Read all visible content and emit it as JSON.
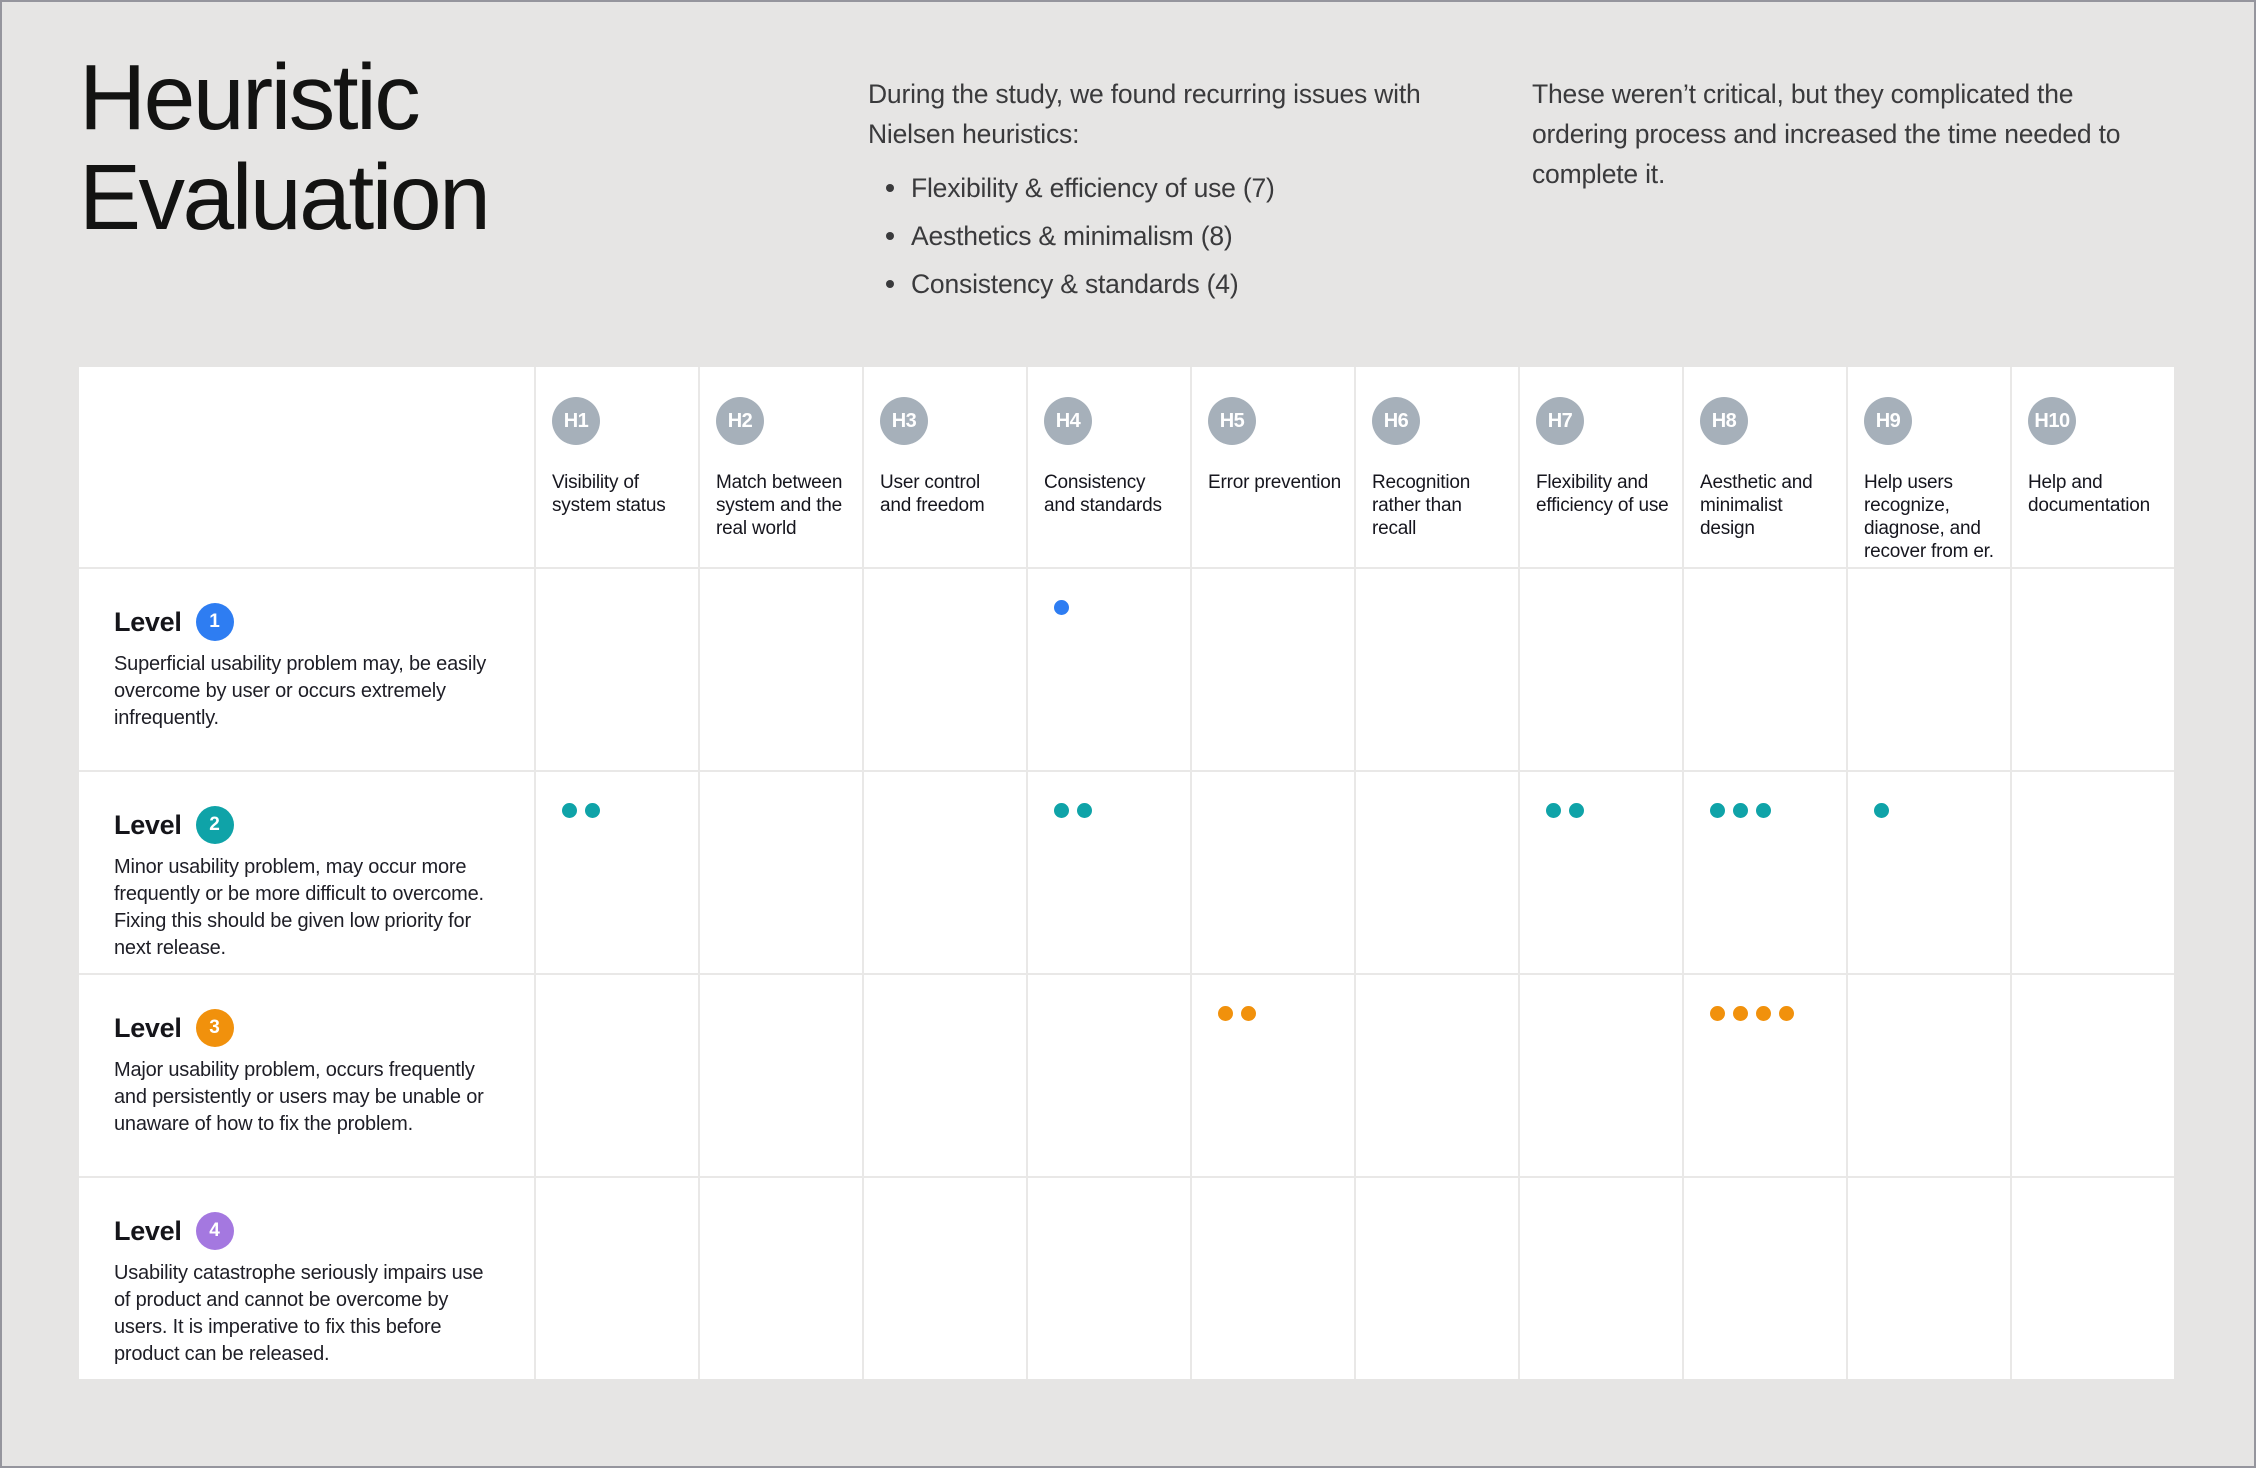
{
  "colors": {
    "background": "#e6e5e4",
    "surface": "#ffffff",
    "grid_line": "#e9e8e7",
    "frame_border": "#95959d",
    "heuristic_badge": "#a6b0ba",
    "title_text": "#131312",
    "body_text": "#3a3a3c",
    "table_text": "#1e1e26",
    "level1": "#2e7df2",
    "level2": "#0fa3a8",
    "level3": "#f1910c",
    "level4": "#a478e0"
  },
  "header": {
    "title": "Heuristic Evaluation",
    "intro_lead": "During the study, we found recurring issues with Nielsen heuristics:",
    "issues": [
      "Flexibility & efficiency of use (7)",
      "Aesthetics & minimalism (8)",
      "Consistency & standards (4)"
    ],
    "note": "These weren’t critical, but they complicated the ordering process and increased the time needed to complete it."
  },
  "matrix": {
    "heuristics": [
      {
        "id": "H1",
        "label": "Visibility of system status"
      },
      {
        "id": "H2",
        "label": "Match between system and the real world"
      },
      {
        "id": "H3",
        "label": "User control and freedom"
      },
      {
        "id": "H4",
        "label": "Consistency and standards"
      },
      {
        "id": "H5",
        "label": "Error prevention"
      },
      {
        "id": "H6",
        "label": "Recognition rather than recall"
      },
      {
        "id": "H7",
        "label": "Flexibility and efficiency of use"
      },
      {
        "id": "H8",
        "label": "Aesthetic and minimalist design"
      },
      {
        "id": "H9",
        "label": "Help users recognize, diagnose, and recover from er."
      },
      {
        "id": "H10",
        "label": "Help and documentation"
      }
    ],
    "levels": [
      {
        "name": "Level",
        "num": "1",
        "color": "#2e7df2",
        "description": "Superficial usability problem may, be easily overcome by user or occurs extremely infrequently.",
        "dots": {
          "H4": 1
        }
      },
      {
        "name": "Level",
        "num": "2",
        "color": "#0fa3a8",
        "description": "Minor usability problem, may occur more frequently or be more difficult to overcome. Fixing this should be given low priority for next release.",
        "dots": {
          "H1": 2,
          "H4": 2,
          "H7": 2,
          "H8": 3,
          "H9": 1
        }
      },
      {
        "name": "Level",
        "num": "3",
        "color": "#f1910c",
        "description": "Major usability problem, occurs frequently and persistently or users may be unable or unaware of how to fix the problem.",
        "dots": {
          "H5": 2,
          "H8": 4
        }
      },
      {
        "name": "Level",
        "num": "4",
        "color": "#a478e0",
        "description": "Usability catastrophe seriously impairs use of product and cannot be overcome by users. It is imperative to fix this before product can be released.",
        "dots": {}
      }
    ]
  }
}
